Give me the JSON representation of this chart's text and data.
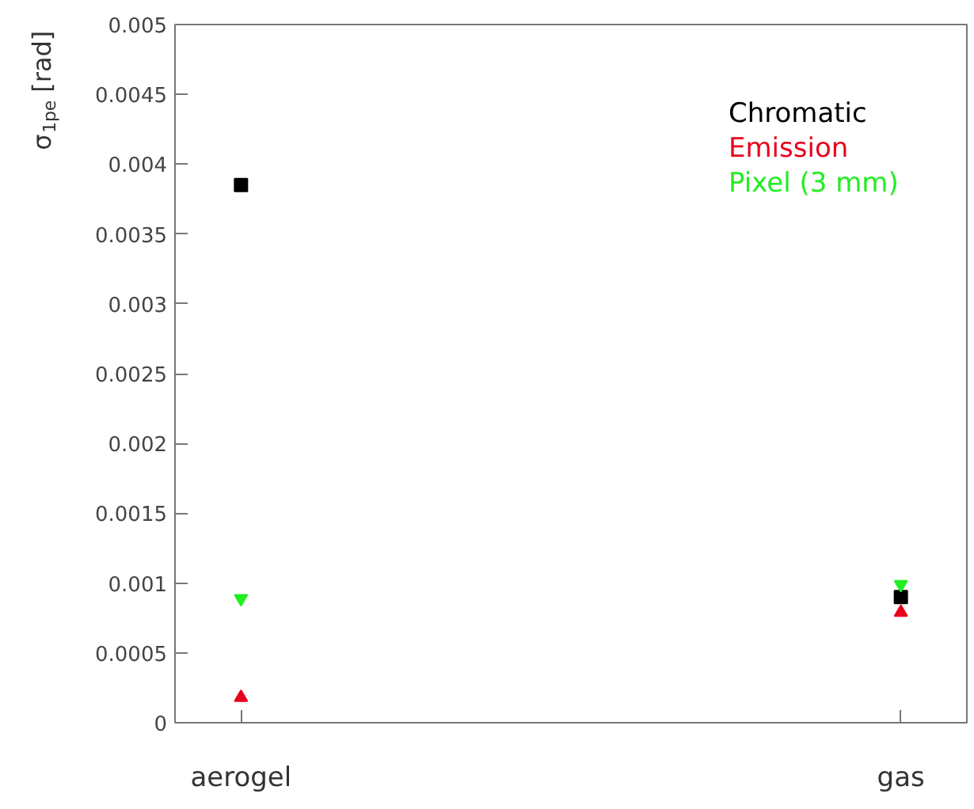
{
  "chart_data": {
    "type": "scatter",
    "ylabel": "σ$_{1pe}$ [rad]",
    "categories": [
      "aerogel",
      "gas"
    ],
    "series": [
      {
        "name": "Chromatic",
        "color": "#000000",
        "marker": "square",
        "values": [
          0.00385,
          0.0009
        ]
      },
      {
        "name": "Emission",
        "color": "#e8001c",
        "marker": "triangle",
        "values": [
          0.00018,
          0.00079
        ]
      },
      {
        "name": "Pixel (3 mm)",
        "color": "#22ee22",
        "values": [
          0.00089,
          0.00099
        ]
      }
    ],
    "ylim": [
      0,
      0.005
    ],
    "yticks": [
      0,
      0.0005,
      0.001,
      0.0015,
      0.002,
      0.0025,
      0.003,
      0.0035,
      0.004,
      0.0045,
      0.005
    ],
    "grid": false,
    "legend": "top right"
  }
}
